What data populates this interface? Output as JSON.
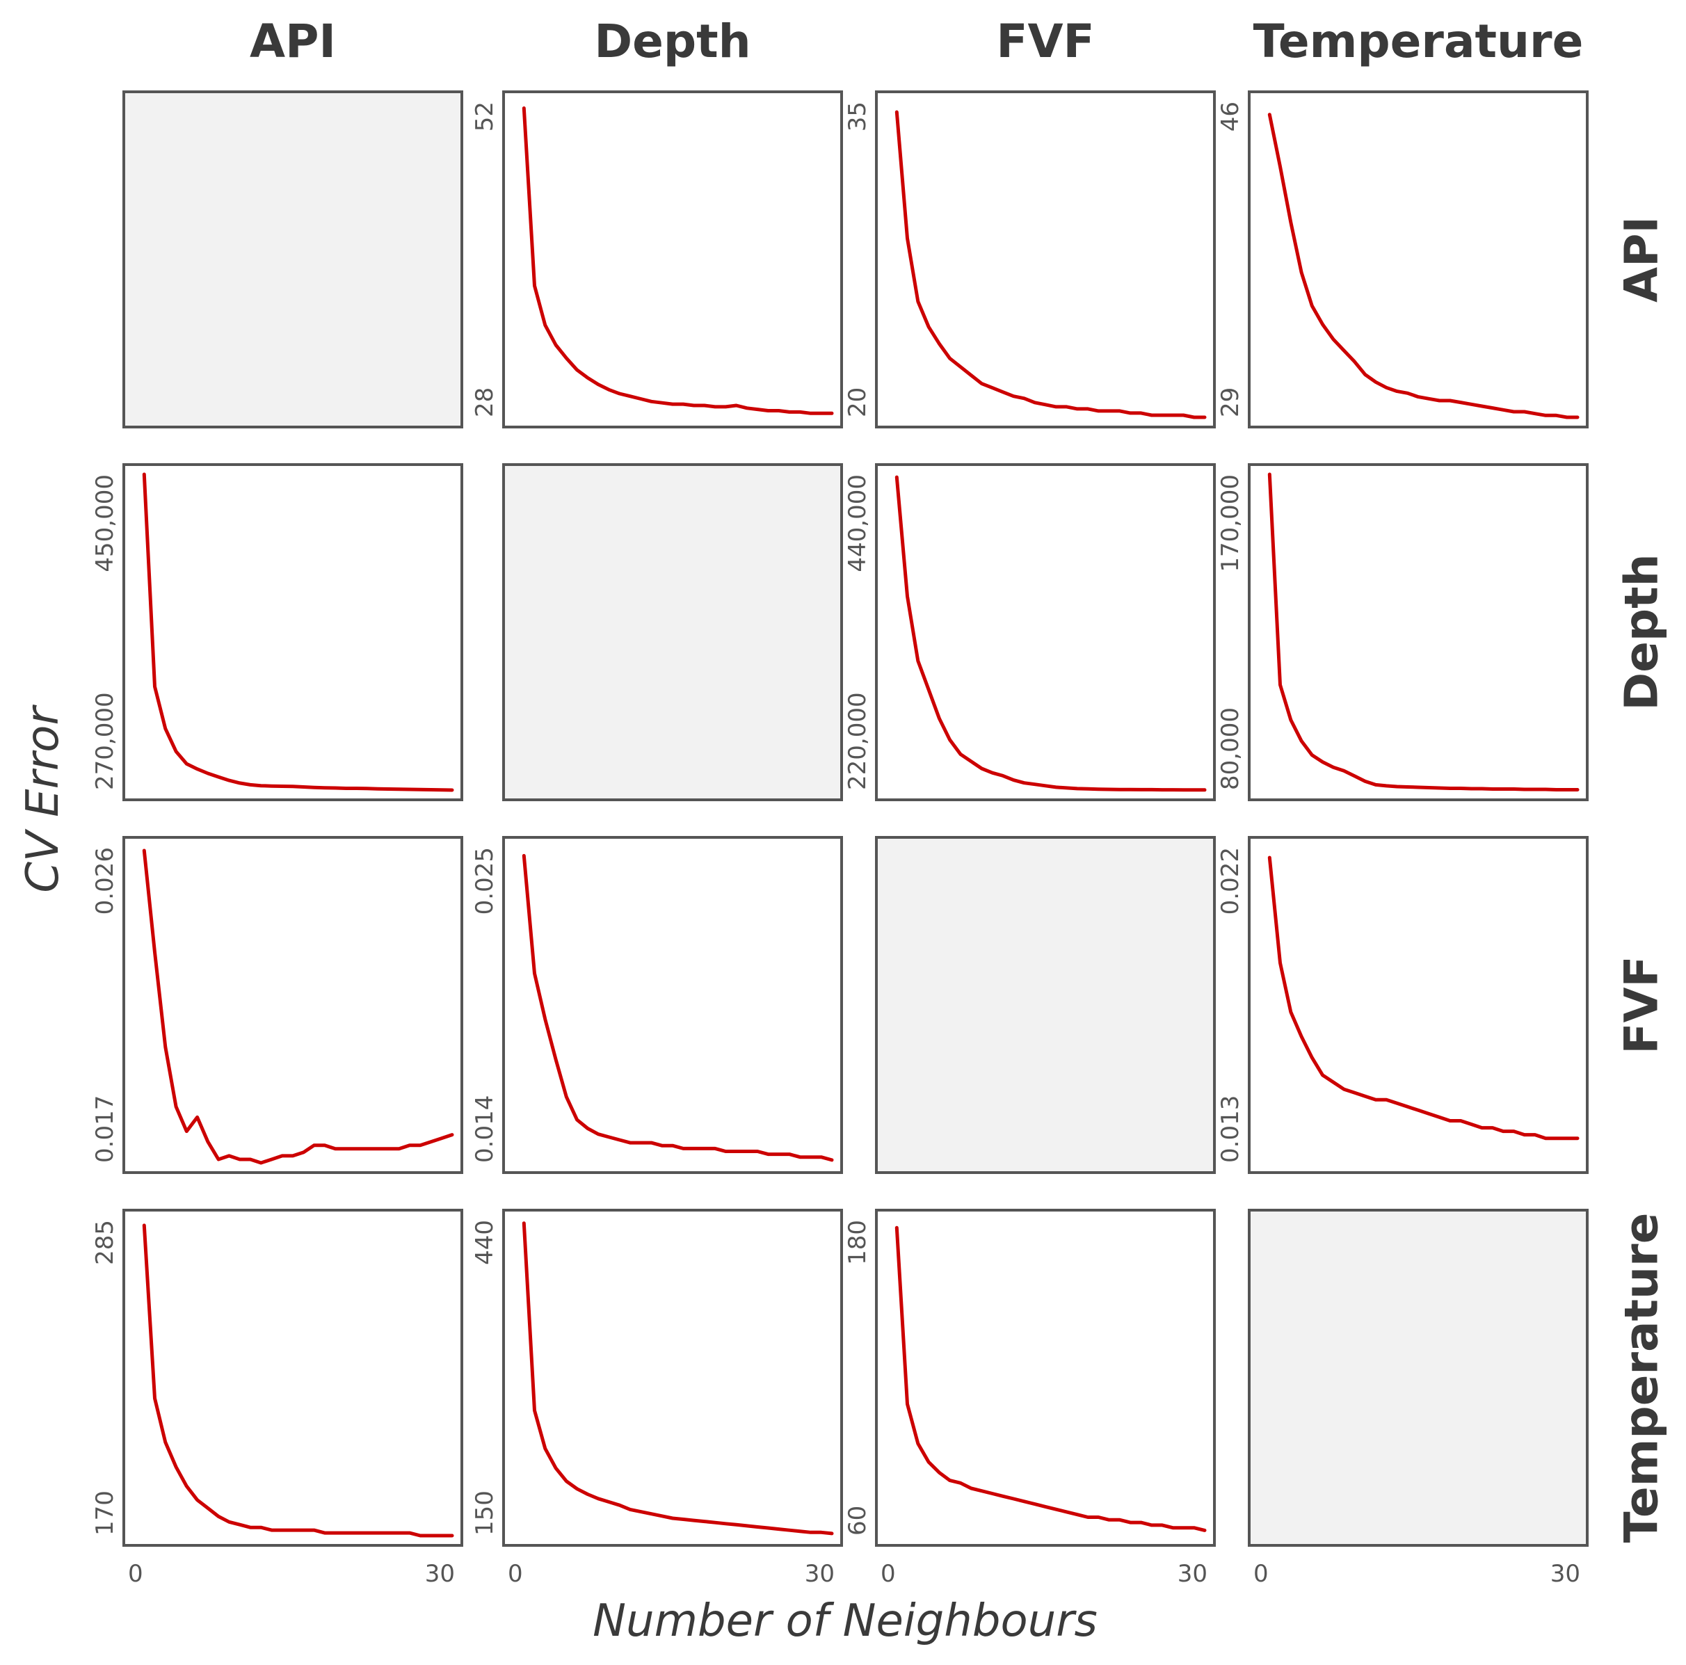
{
  "chart_data": {
    "type": "line",
    "layout": "4x4 grid",
    "column_titles": [
      "API",
      "Depth",
      "FVF",
      "Temperature"
    ],
    "row_titles": [
      "API",
      "Depth",
      "FVF",
      "Temperature"
    ],
    "xlabel": "Number of Neighbours",
    "ylabel": "CV Error",
    "xlim": [
      0,
      30
    ],
    "x_tick_labels": [
      "0",
      "30"
    ],
    "x": [
      1,
      2,
      3,
      4,
      5,
      6,
      7,
      8,
      9,
      10,
      11,
      12,
      13,
      14,
      15,
      16,
      17,
      18,
      19,
      20,
      21,
      22,
      23,
      24,
      25,
      26,
      27,
      28,
      29,
      30
    ],
    "line_color": "#cc0000",
    "empty_panel_color": "#f2f2f2",
    "panels": [
      [
        {
          "empty": true
        },
        {
          "ylim": [
            28,
            52
          ],
          "y_tick_labels": [
            "28",
            "52"
          ],
          "values": [
            51.5,
            38,
            35,
            33.5,
            32.5,
            31.6,
            31,
            30.5,
            30.1,
            29.8,
            29.6,
            29.4,
            29.2,
            29.1,
            29.0,
            29.0,
            28.9,
            28.9,
            28.8,
            28.8,
            28.9,
            28.7,
            28.6,
            28.5,
            28.5,
            28.4,
            28.4,
            28.3,
            28.3,
            28.3
          ]
        },
        {
          "ylim": [
            20,
            35
          ],
          "y_tick_labels": [
            "20",
            "35"
          ],
          "values": [
            34.5,
            28.5,
            25.5,
            24.3,
            23.5,
            22.8,
            22.4,
            22.0,
            21.6,
            21.4,
            21.2,
            21.0,
            20.9,
            20.7,
            20.6,
            20.5,
            20.5,
            20.4,
            20.4,
            20.3,
            20.3,
            20.3,
            20.2,
            20.2,
            20.1,
            20.1,
            20.1,
            20.1,
            20.0,
            20.0
          ]
        },
        {
          "ylim": [
            29,
            46
          ],
          "y_tick_labels": [
            "29",
            "46"
          ],
          "values": [
            45.3,
            42.5,
            39.5,
            36.8,
            35.0,
            34.0,
            33.2,
            32.6,
            32.0,
            31.3,
            30.9,
            30.6,
            30.4,
            30.3,
            30.1,
            30.0,
            29.9,
            29.9,
            29.8,
            29.7,
            29.6,
            29.5,
            29.4,
            29.3,
            29.3,
            29.2,
            29.1,
            29.1,
            29.0,
            29.0
          ]
        }
      ],
      [
        {
          "ylim": [
            270000,
            450000
          ],
          "y_tick_labels": [
            "270,000",
            "450,000"
          ],
          "values": [
            450000,
            329000,
            305000,
            292000,
            285000,
            282000,
            279500,
            277500,
            275500,
            274000,
            273000,
            272500,
            272300,
            272200,
            272100,
            271800,
            271500,
            271300,
            271200,
            271000,
            271000,
            270900,
            270700,
            270600,
            270500,
            270400,
            270300,
            270200,
            270100,
            270000
          ]
        },
        {
          "empty": true
        },
        {
          "ylim": [
            220000,
            440000
          ],
          "y_tick_labels": [
            "220,000",
            "440,000"
          ],
          "values": [
            438000,
            355000,
            310000,
            290000,
            270000,
            255000,
            245000,
            240000,
            235000,
            232000,
            230000,
            227000,
            225000,
            224000,
            223000,
            222000,
            221500,
            221000,
            220800,
            220600,
            220500,
            220400,
            220400,
            220300,
            220300,
            220200,
            220200,
            220100,
            220100,
            220100
          ]
        },
        {
          "ylim": [
            80000,
            170000
          ],
          "y_tick_labels": [
            "80,000",
            "170,000"
          ],
          "values": [
            170000,
            110000,
            100000,
            94000,
            90000,
            88000,
            86500,
            85500,
            84000,
            82500,
            81500,
            81200,
            81000,
            80900,
            80800,
            80700,
            80600,
            80500,
            80500,
            80400,
            80400,
            80300,
            80300,
            80300,
            80200,
            80200,
            80200,
            80100,
            80100,
            80100
          ]
        }
      ],
      [
        {
          "ylim": [
            0.017,
            0.026
          ],
          "y_tick_labels": [
            "0.017",
            "0.026"
          ],
          "values": [
            0.0259,
            0.023,
            0.0203,
            0.0186,
            0.0179,
            0.0183,
            0.0176,
            0.0171,
            0.0172,
            0.0171,
            0.0171,
            0.017,
            0.0171,
            0.0172,
            0.0172,
            0.0173,
            0.0175,
            0.0175,
            0.0174,
            0.0174,
            0.0174,
            0.0174,
            0.0174,
            0.0174,
            0.0174,
            0.0175,
            0.0175,
            0.0176,
            0.0177,
            0.0178
          ]
        },
        {
          "ylim": [
            0.014,
            0.025
          ],
          "y_tick_labels": [
            "0.014",
            "0.025"
          ],
          "values": [
            0.0247,
            0.0206,
            0.019,
            0.0176,
            0.0163,
            0.0155,
            0.0152,
            0.015,
            0.0149,
            0.0148,
            0.0147,
            0.0147,
            0.0147,
            0.0146,
            0.0146,
            0.0145,
            0.0145,
            0.0145,
            0.0145,
            0.0144,
            0.0144,
            0.0144,
            0.0144,
            0.0143,
            0.0143,
            0.0143,
            0.0142,
            0.0142,
            0.0142,
            0.0141
          ]
        },
        {
          "empty": true
        },
        {
          "ylim": [
            0.013,
            0.022
          ],
          "y_tick_labels": [
            "0.013",
            "0.022"
          ],
          "values": [
            0.0217,
            0.0187,
            0.0173,
            0.0166,
            0.016,
            0.0155,
            0.0153,
            0.0151,
            0.015,
            0.0149,
            0.0148,
            0.0148,
            0.0147,
            0.0146,
            0.0145,
            0.0144,
            0.0143,
            0.0142,
            0.0142,
            0.0141,
            0.014,
            0.014,
            0.0139,
            0.0139,
            0.0138,
            0.0138,
            0.0137,
            0.0137,
            0.0137,
            0.0137
          ]
        }
      ],
      [
        {
          "ylim": [
            170,
            285
          ],
          "y_tick_labels": [
            "170",
            "285"
          ],
          "values": [
            283,
            220,
            204,
            195,
            188,
            183,
            180,
            177,
            175,
            174,
            173,
            173,
            172,
            172,
            172,
            172,
            172,
            171,
            171,
            171,
            171,
            171,
            171,
            171,
            171,
            171,
            170,
            170,
            170,
            170
          ]
        },
        {
          "ylim": [
            150,
            440
          ],
          "y_tick_labels": [
            "150",
            "440"
          ],
          "values": [
            437,
            265,
            230,
            212,
            200,
            193,
            188,
            184,
            181,
            178,
            174,
            172,
            170,
            168,
            166,
            165,
            164,
            163,
            162,
            161,
            160,
            159,
            158,
            157,
            156,
            155,
            154,
            153,
            153,
            152
          ]
        },
        {
          "ylim": [
            60,
            180
          ],
          "y_tick_labels": [
            "60",
            "180"
          ],
          "values": [
            177,
            110,
            95,
            88,
            84,
            81,
            80,
            78,
            77,
            76,
            75,
            74,
            73,
            72,
            71,
            70,
            69,
            68,
            67,
            67,
            66,
            66,
            65,
            65,
            64,
            64,
            63,
            63,
            63,
            62
          ]
        },
        {
          "empty": true
        }
      ]
    ]
  }
}
